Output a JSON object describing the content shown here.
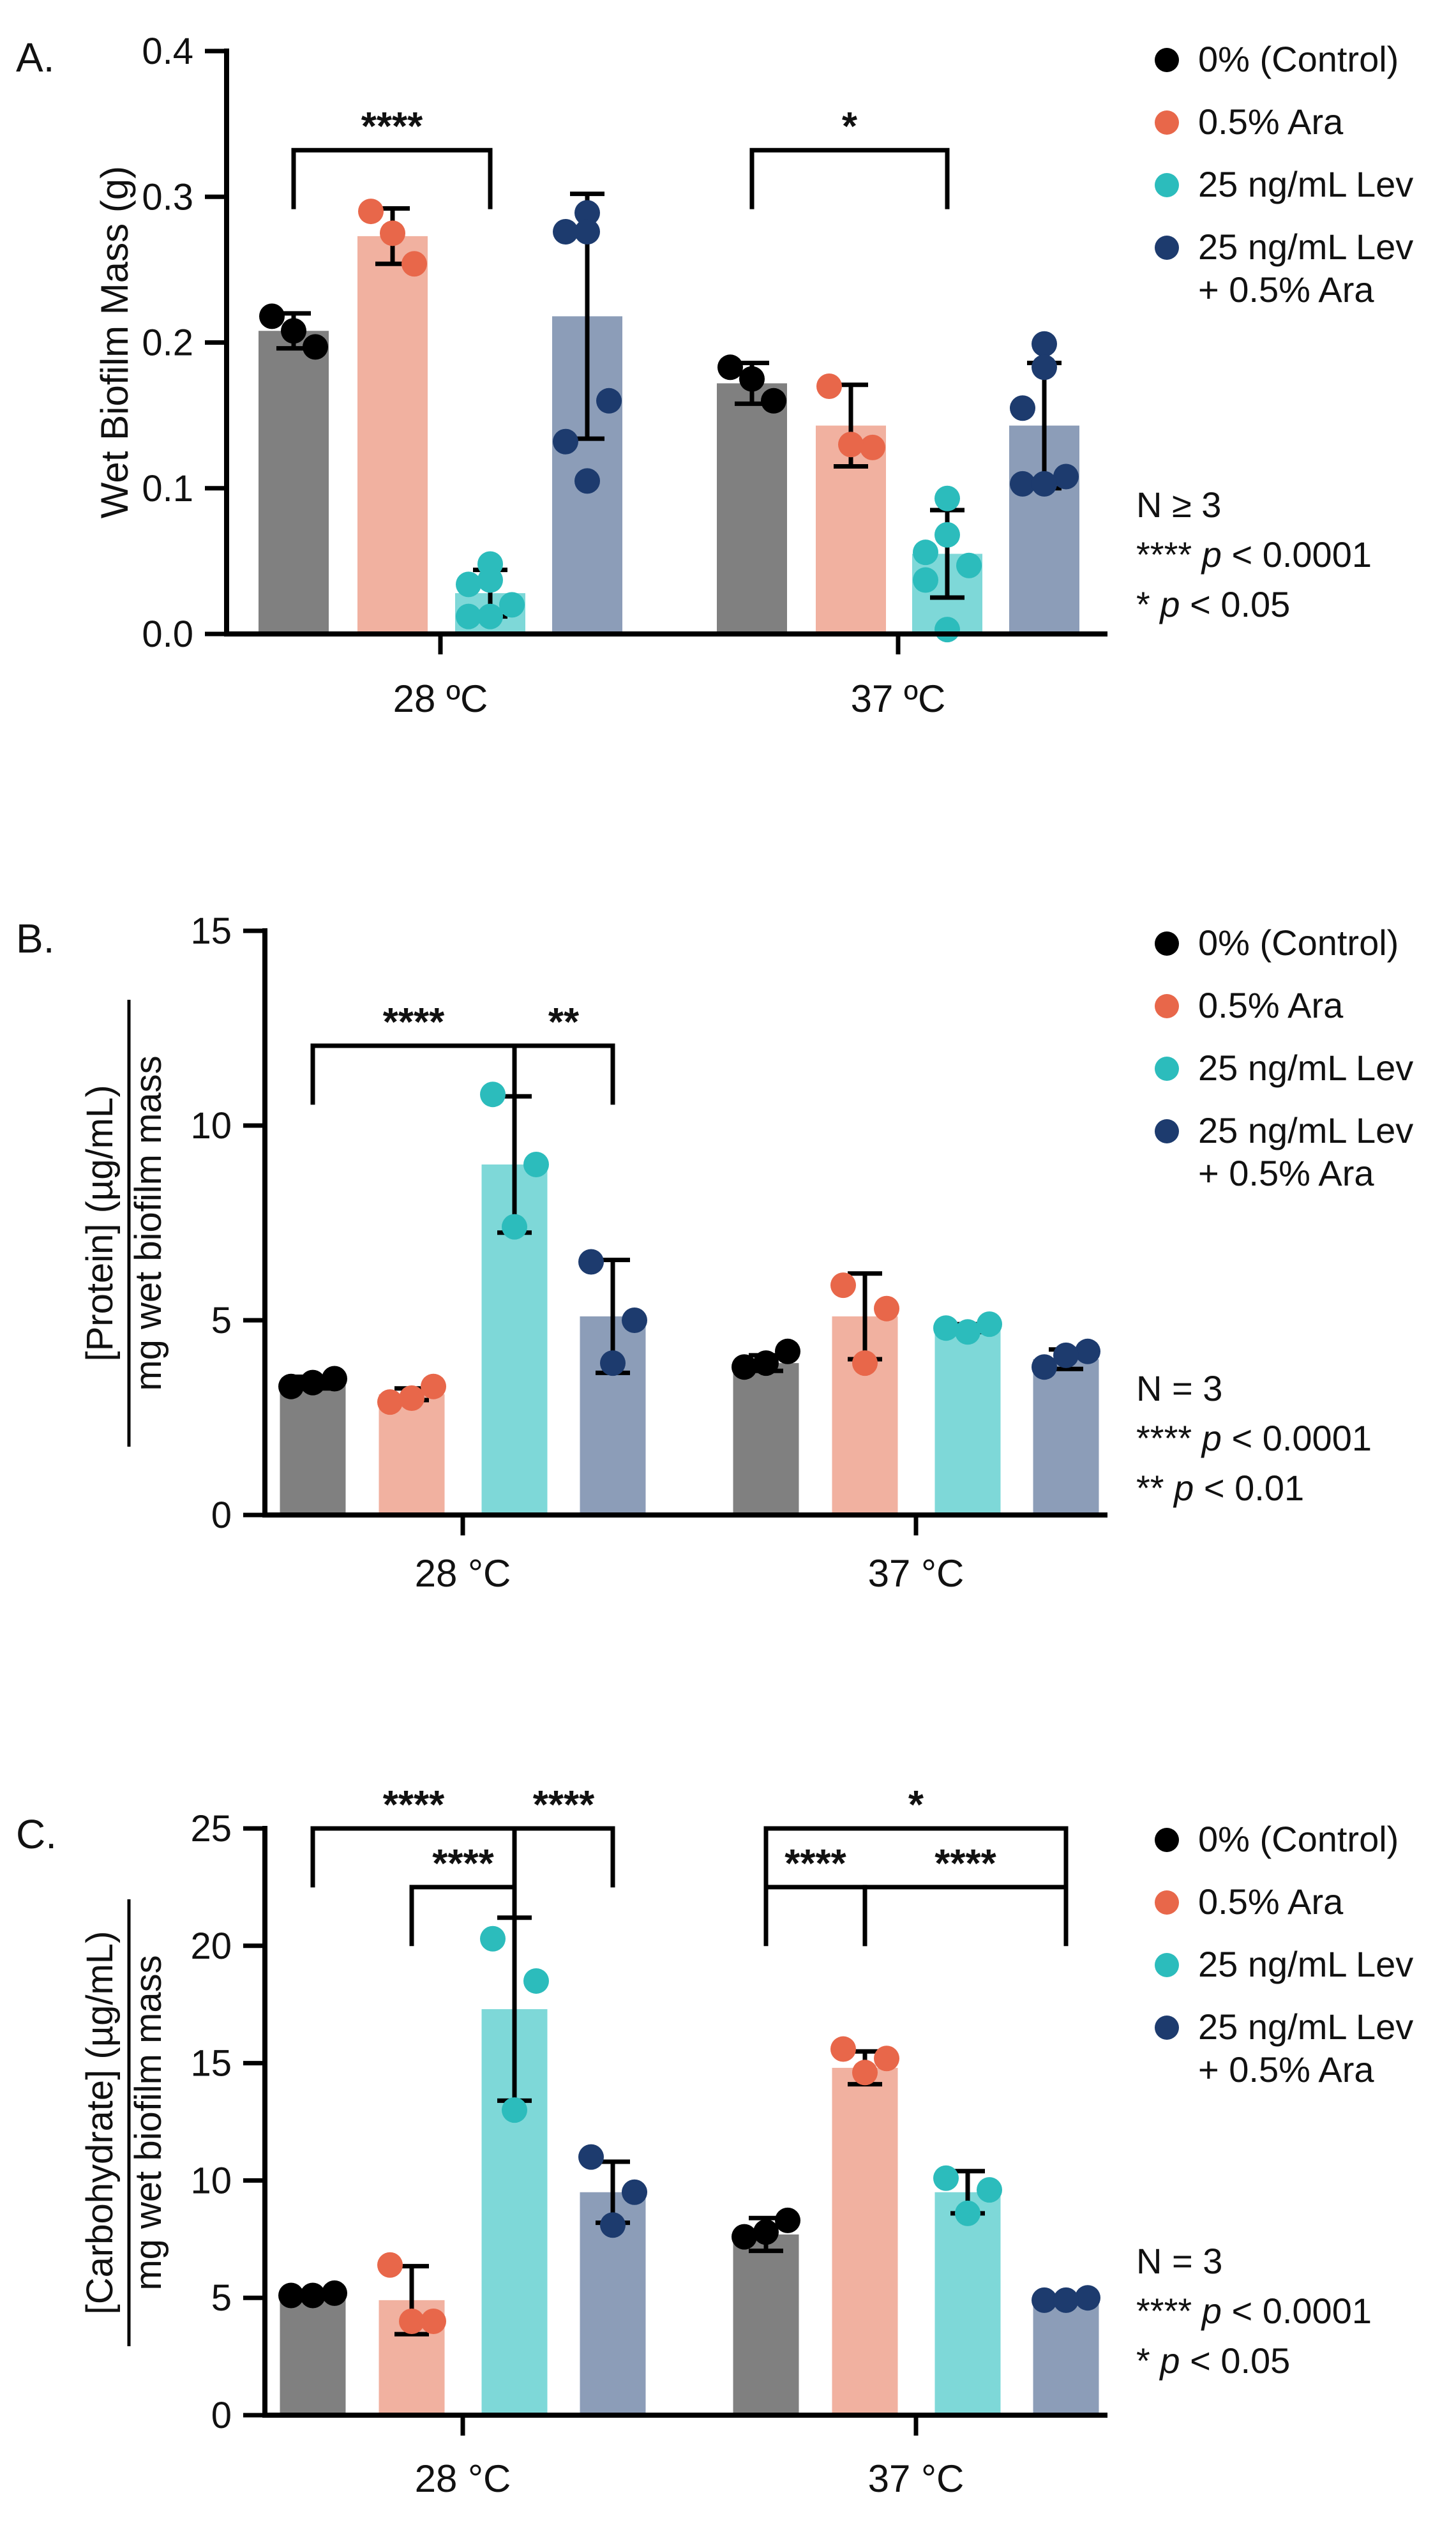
{
  "colors": {
    "control_bar": "#808080",
    "control_dot": "#000000",
    "ara_bar": "#f1b1a0",
    "ara_dot": "#e8674a",
    "lev_bar": "#7ed8d8",
    "lev_dot": "#2cbcbc",
    "combo_bar": "#8c9db8",
    "combo_dot": "#1d3b6e"
  },
  "chart_data": [
    {
      "type": "bar",
      "panel_label": "A.",
      "title": "",
      "ylabel": "Wet Biofilm Mass (g)",
      "ylabel_parts": {
        "num": "Wet Biofilm Mass (g)",
        "den": ""
      },
      "ylim": [
        0,
        0.4
      ],
      "yticks": [
        "0.0",
        "0.1",
        "0.2",
        "0.3",
        "0.4"
      ],
      "ytick_values": [
        0,
        0.1,
        0.2,
        0.3,
        0.4
      ],
      "categories": [
        "28 ºC",
        "37 ºC"
      ],
      "legend": [
        "0% (Control)",
        "0.5% Ara",
        "25 ng/mL Lev",
        "25 ng/mL Lev",
        "+ 0.5% Ara"
      ],
      "stats_note": {
        "n": "N ≥ 3",
        "line1_stars": "****",
        "line1_p": "p",
        "line1_rest": " < 0.0001",
        "line2_stars": "*",
        "line2_p": "p",
        "line2_rest": " < 0.05"
      },
      "series": [
        {
          "name": "0% (Control)",
          "values": [
            0.208,
            0.172
          ],
          "sd": [
            0.012,
            0.014
          ],
          "points": [
            [
              0.218,
              0.197,
              0.208
            ],
            [
              0.183,
              0.16,
              0.175
            ]
          ]
        },
        {
          "name": "0.5% Ara",
          "values": [
            0.273,
            0.143
          ],
          "sd": [
            0.019,
            0.028
          ],
          "points": [
            [
              0.29,
              0.254,
              0.275
            ],
            [
              0.17,
              0.128,
              0.13
            ]
          ]
        },
        {
          "name": "25 ng/mL Lev",
          "values": [
            0.028,
            0.055
          ],
          "sd": [
            0.016,
            0.03
          ],
          "points": [
            [
              0.048,
              0.037,
              0.034,
              0.02,
              0.012,
              0.012
            ],
            [
              0.093,
              0.068,
              0.056,
              0.047,
              0.037,
              0.003
            ]
          ]
        },
        {
          "name": "25 ng/mL Lev + 0.5% Ara",
          "values": [
            0.218,
            0.143
          ],
          "sd": [
            0.084,
            0.043
          ],
          "points": [
            [
              0.289,
              0.276,
              0.276,
              0.16,
              0.132,
              0.105
            ],
            [
              0.199,
              0.183,
              0.155,
              0.108,
              0.103,
              0.103
            ]
          ]
        }
      ],
      "significance": [
        {
          "label": "****",
          "from": [
            0,
            0
          ],
          "to": [
            0,
            2
          ],
          "y": 0.332,
          "level": 0
        },
        {
          "label": "*",
          "from": [
            1,
            0
          ],
          "to": [
            1,
            2
          ],
          "y": 0.332,
          "level": 0
        }
      ]
    },
    {
      "type": "bar",
      "panel_label": "B.",
      "title": "",
      "ylabel": "[Protein] (µg/mL) / mg wet biofilm mass",
      "ylabel_parts": {
        "num": "[Protein] (µg/mL)",
        "den": "mg wet biofilm mass"
      },
      "ylim": [
        0,
        15
      ],
      "yticks": [
        "0",
        "5",
        "10",
        "15"
      ],
      "ytick_values": [
        0,
        5,
        10,
        15
      ],
      "categories": [
        "28 °C",
        "37 °C"
      ],
      "legend": [
        "0% (Control)",
        "0.5% Ara",
        "25 ng/mL Lev",
        "25 ng/mL Lev",
        "+ 0.5% Ara"
      ],
      "stats_note": {
        "n": "N = 3",
        "line1_stars": "****",
        "line1_p": "p",
        "line1_rest": " < 0.0001",
        "line2_stars": "**",
        "line2_p": "p",
        "line2_rest": " < 0.01"
      },
      "series": [
        {
          "name": "0% (Control)",
          "values": [
            3.4,
            3.9
          ],
          "sd": [
            0.15,
            0.2
          ],
          "points": [
            [
              3.3,
              3.5,
              3.4
            ],
            [
              3.8,
              4.2,
              3.9
            ]
          ]
        },
        {
          "name": "0.5% Ara",
          "values": [
            3.1,
            5.1
          ],
          "sd": [
            0.15,
            1.1
          ],
          "points": [
            [
              2.9,
              3.3,
              3.0
            ],
            [
              5.9,
              5.3,
              3.9
            ]
          ]
        },
        {
          "name": "25 ng/mL Lev",
          "values": [
            9.0,
            4.8
          ],
          "sd": [
            1.75,
            0.1
          ],
          "points": [
            [
              10.8,
              9.0,
              7.4
            ],
            [
              4.8,
              4.9,
              4.7
            ]
          ]
        },
        {
          "name": "25 ng/mL Lev + 0.5% Ara",
          "values": [
            5.1,
            4.0
          ],
          "sd": [
            1.45,
            0.25
          ],
          "points": [
            [
              6.5,
              5.0,
              3.9
            ],
            [
              3.8,
              4.2,
              4.1
            ]
          ]
        }
      ],
      "significance": [
        {
          "label": "****",
          "from": [
            0,
            0
          ],
          "to": [
            0,
            2
          ],
          "y": 12.05,
          "level": 0
        },
        {
          "label": "**",
          "from": [
            0,
            2
          ],
          "to": [
            0,
            3
          ],
          "y": 12.05,
          "level": 0
        }
      ]
    },
    {
      "type": "bar",
      "panel_label": "C.",
      "title": "",
      "ylabel": "[Carbohydrate] (µg/mL) / mg wet biofilm mass",
      "ylabel_parts": {
        "num": "[Carbohydrate] (µg/mL)",
        "den": "mg wet biofilm mass"
      },
      "ylim": [
        0,
        25
      ],
      "yticks": [
        "0",
        "5",
        "10",
        "15",
        "20",
        "25"
      ],
      "ytick_values": [
        0,
        5,
        10,
        15,
        20,
        25
      ],
      "categories": [
        "28 °C",
        "37 °C"
      ],
      "legend": [
        "0% (Control)",
        "0.5% Ara",
        "25 ng/mL Lev",
        "25 ng/mL Lev",
        "+ 0.5% Ara"
      ],
      "stats_note": {
        "n": "N = 3",
        "line1_stars": "****",
        "line1_p": "p",
        "line1_rest": " < 0.0001",
        "line2_stars": "*",
        "line2_p": "p",
        "line2_rest": " < 0.05"
      },
      "series": [
        {
          "name": "0% (Control)",
          "values": [
            5.1,
            7.7
          ],
          "sd": [
            0.1,
            0.7
          ],
          "points": [
            [
              5.1,
              5.2,
              5.1
            ],
            [
              7.6,
              8.3,
              7.8
            ]
          ]
        },
        {
          "name": "0.5% Ara",
          "values": [
            4.9,
            14.8
          ],
          "sd": [
            1.45,
            0.7
          ],
          "points": [
            [
              6.4,
              4.0,
              4.0
            ],
            [
              15.6,
              15.2,
              14.6
            ]
          ]
        },
        {
          "name": "25 ng/mL Lev",
          "values": [
            17.3,
            9.5
          ],
          "sd": [
            3.9,
            0.9
          ],
          "points": [
            [
              20.3,
              18.5,
              13.0
            ],
            [
              10.1,
              9.6,
              8.6
            ]
          ]
        },
        {
          "name": "25 ng/mL Lev + 0.5% Ara",
          "values": [
            9.5,
            4.9
          ],
          "sd": [
            1.3,
            0.1
          ],
          "points": [
            [
              11.0,
              9.5,
              8.1
            ],
            [
              4.9,
              5.0,
              4.9
            ]
          ]
        }
      ],
      "significance": [
        {
          "label": "****",
          "from": [
            0,
            0
          ],
          "to": [
            0,
            2
          ],
          "y": 25.0,
          "level": 0
        },
        {
          "label": "****",
          "from": [
            0,
            2
          ],
          "to": [
            0,
            3
          ],
          "y": 25.0,
          "level": 0
        },
        {
          "label": "****",
          "from": [
            0,
            1
          ],
          "to": [
            0,
            2
          ],
          "y": 22.5,
          "level": 1
        },
        {
          "label": "*",
          "from": [
            1,
            0
          ],
          "to": [
            1,
            3
          ],
          "y": 25.0,
          "level": 0
        },
        {
          "label": "****",
          "from": [
            1,
            0
          ],
          "to": [
            1,
            1
          ],
          "y": 22.5,
          "level": 1
        },
        {
          "label": "****",
          "from": [
            1,
            1
          ],
          "to": [
            1,
            3
          ],
          "y": 22.5,
          "level": 1
        }
      ]
    }
  ]
}
